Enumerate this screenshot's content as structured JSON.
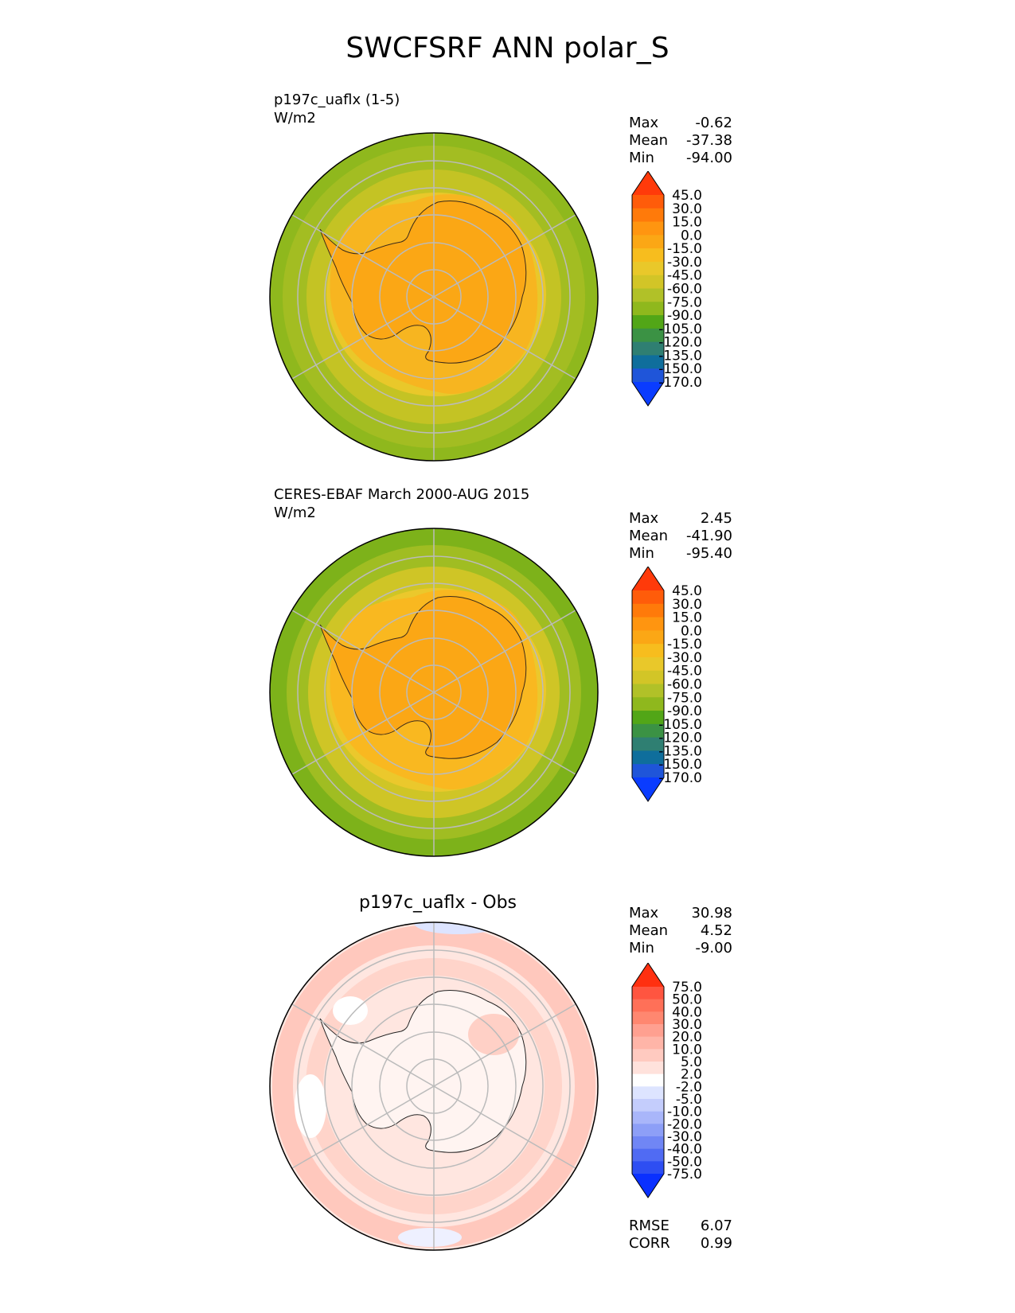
{
  "main_title": "SWCFSRF ANN polar_S",
  "panels": [
    {
      "title_line1": "p197c_uaflx (1-5)",
      "title_line2": "W/m2",
      "stats": [
        {
          "label": "Max",
          "value": "-0.62"
        },
        {
          "label": "Mean",
          "value": "-37.38"
        },
        {
          "label": "Min",
          "value": "-94.00"
        }
      ]
    },
    {
      "title_line1": "CERES-EBAF March 2000-AUG 2015",
      "title_line2": "W/m2",
      "stats": [
        {
          "label": "Max",
          "value": "2.45"
        },
        {
          "label": "Mean",
          "value": "-41.90"
        },
        {
          "label": "Min",
          "value": "-95.40"
        }
      ]
    },
    {
      "title": "p197c_uaflx - Obs",
      "stats": [
        {
          "label": "Max",
          "value": "30.98"
        },
        {
          "label": "Mean",
          "value": "4.52"
        },
        {
          "label": "Min",
          "value": "-9.00"
        }
      ],
      "metrics": [
        {
          "label": "RMSE",
          "value": "6.07"
        },
        {
          "label": "CORR",
          "value": "0.99"
        }
      ]
    }
  ],
  "colorbars": {
    "field": {
      "ticks": [
        "45.0",
        "30.0",
        "15.0",
        "0.0",
        "-15.0",
        "-30.0",
        "-45.0",
        "-60.0",
        "-75.0",
        "-90.0",
        "-105.0",
        "-120.0",
        "-135.0",
        "-150.0",
        "-170.0"
      ],
      "colors": [
        "#ff3a0a",
        "#ff5c0a",
        "#ff7a0a",
        "#ff9510",
        "#fba715",
        "#f7bd1e",
        "#e9c82a",
        "#d2c527",
        "#b1c128",
        "#8fb81d",
        "#52a617",
        "#3b9244",
        "#2f7f72",
        "#0f6e9c",
        "#1f55d9",
        "#0a3cff"
      ]
    },
    "diff": {
      "ticks": [
        "75.0",
        "50.0",
        "40.0",
        "30.0",
        "20.0",
        "10.0",
        "5.0",
        "2.0",
        "-2.0",
        "-5.0",
        "-10.0",
        "-20.0",
        "-30.0",
        "-40.0",
        "-50.0",
        "-75.0"
      ],
      "colors": [
        "#ff3010",
        "#ff5540",
        "#ff7058",
        "#ff8770",
        "#ffa090",
        "#ffb5a8",
        "#ffcac0",
        "#ffe2dc",
        "#ffffff",
        "#dde4ff",
        "#c4cdfc",
        "#a9b6fa",
        "#8d9ff7",
        "#7086f5",
        "#506bf3",
        "#2e4ef2",
        "#0a30ff"
      ]
    }
  },
  "chart_data": [
    {
      "type": "heatmap",
      "projection": "south polar stereographic",
      "title": "p197c_uaflx (1-5)",
      "units": "W/m2",
      "levels": [
        -170,
        -150,
        -135,
        -120,
        -105,
        -90,
        -75,
        -60,
        -45,
        -30,
        -15,
        0,
        15,
        30,
        45
      ],
      "zones": [
        {
          "region": "Antarctic continent interior",
          "value_approx": -25
        },
        {
          "region": "Antarctic coastline band",
          "value_approx": -38
        },
        {
          "region": "near-coastal ocean",
          "value_approx": -50
        },
        {
          "region": "mid-latitude ocean",
          "value_approx": -65
        },
        {
          "region": "outer ocean (about 55S)",
          "value_approx": -80
        }
      ],
      "stats": {
        "max": -0.62,
        "mean": -37.38,
        "min": -94.0
      }
    },
    {
      "type": "heatmap",
      "projection": "south polar stereographic",
      "title": "CERES-EBAF March 2000-AUG 2015",
      "units": "W/m2",
      "levels": [
        -170,
        -150,
        -135,
        -120,
        -105,
        -90,
        -75,
        -60,
        -45,
        -30,
        -15,
        0,
        15,
        30,
        45
      ],
      "zones": [
        {
          "region": "Antarctic continent interior",
          "value_approx": -25
        },
        {
          "region": "Antarctic coastline band",
          "value_approx": -38
        },
        {
          "region": "near-coastal ocean",
          "value_approx": -50
        },
        {
          "region": "mid-latitude ocean",
          "value_approx": -68
        },
        {
          "region": "outer ocean (about 55S)",
          "value_approx": -85
        }
      ],
      "stats": {
        "max": 2.45,
        "mean": -41.9,
        "min": -95.4
      }
    },
    {
      "type": "heatmap",
      "projection": "south polar stereographic",
      "title": "p197c_uaflx - Obs",
      "levels": [
        -75,
        -50,
        -40,
        -30,
        -20,
        -10,
        -5,
        -2,
        2,
        5,
        10,
        20,
        30,
        40,
        50,
        75
      ],
      "zones": [
        {
          "region": "continent interior",
          "value_approx": 3
        },
        {
          "region": "coastal ring",
          "value_approx": 8
        },
        {
          "region": "Southern Ocean belt",
          "value_approx": 12
        },
        {
          "region": "outer ocean",
          "value_approx": 4
        }
      ],
      "stats": {
        "max": 30.98,
        "mean": 4.52,
        "min": -9.0,
        "rmse": 6.07,
        "corr": 0.99
      }
    }
  ]
}
